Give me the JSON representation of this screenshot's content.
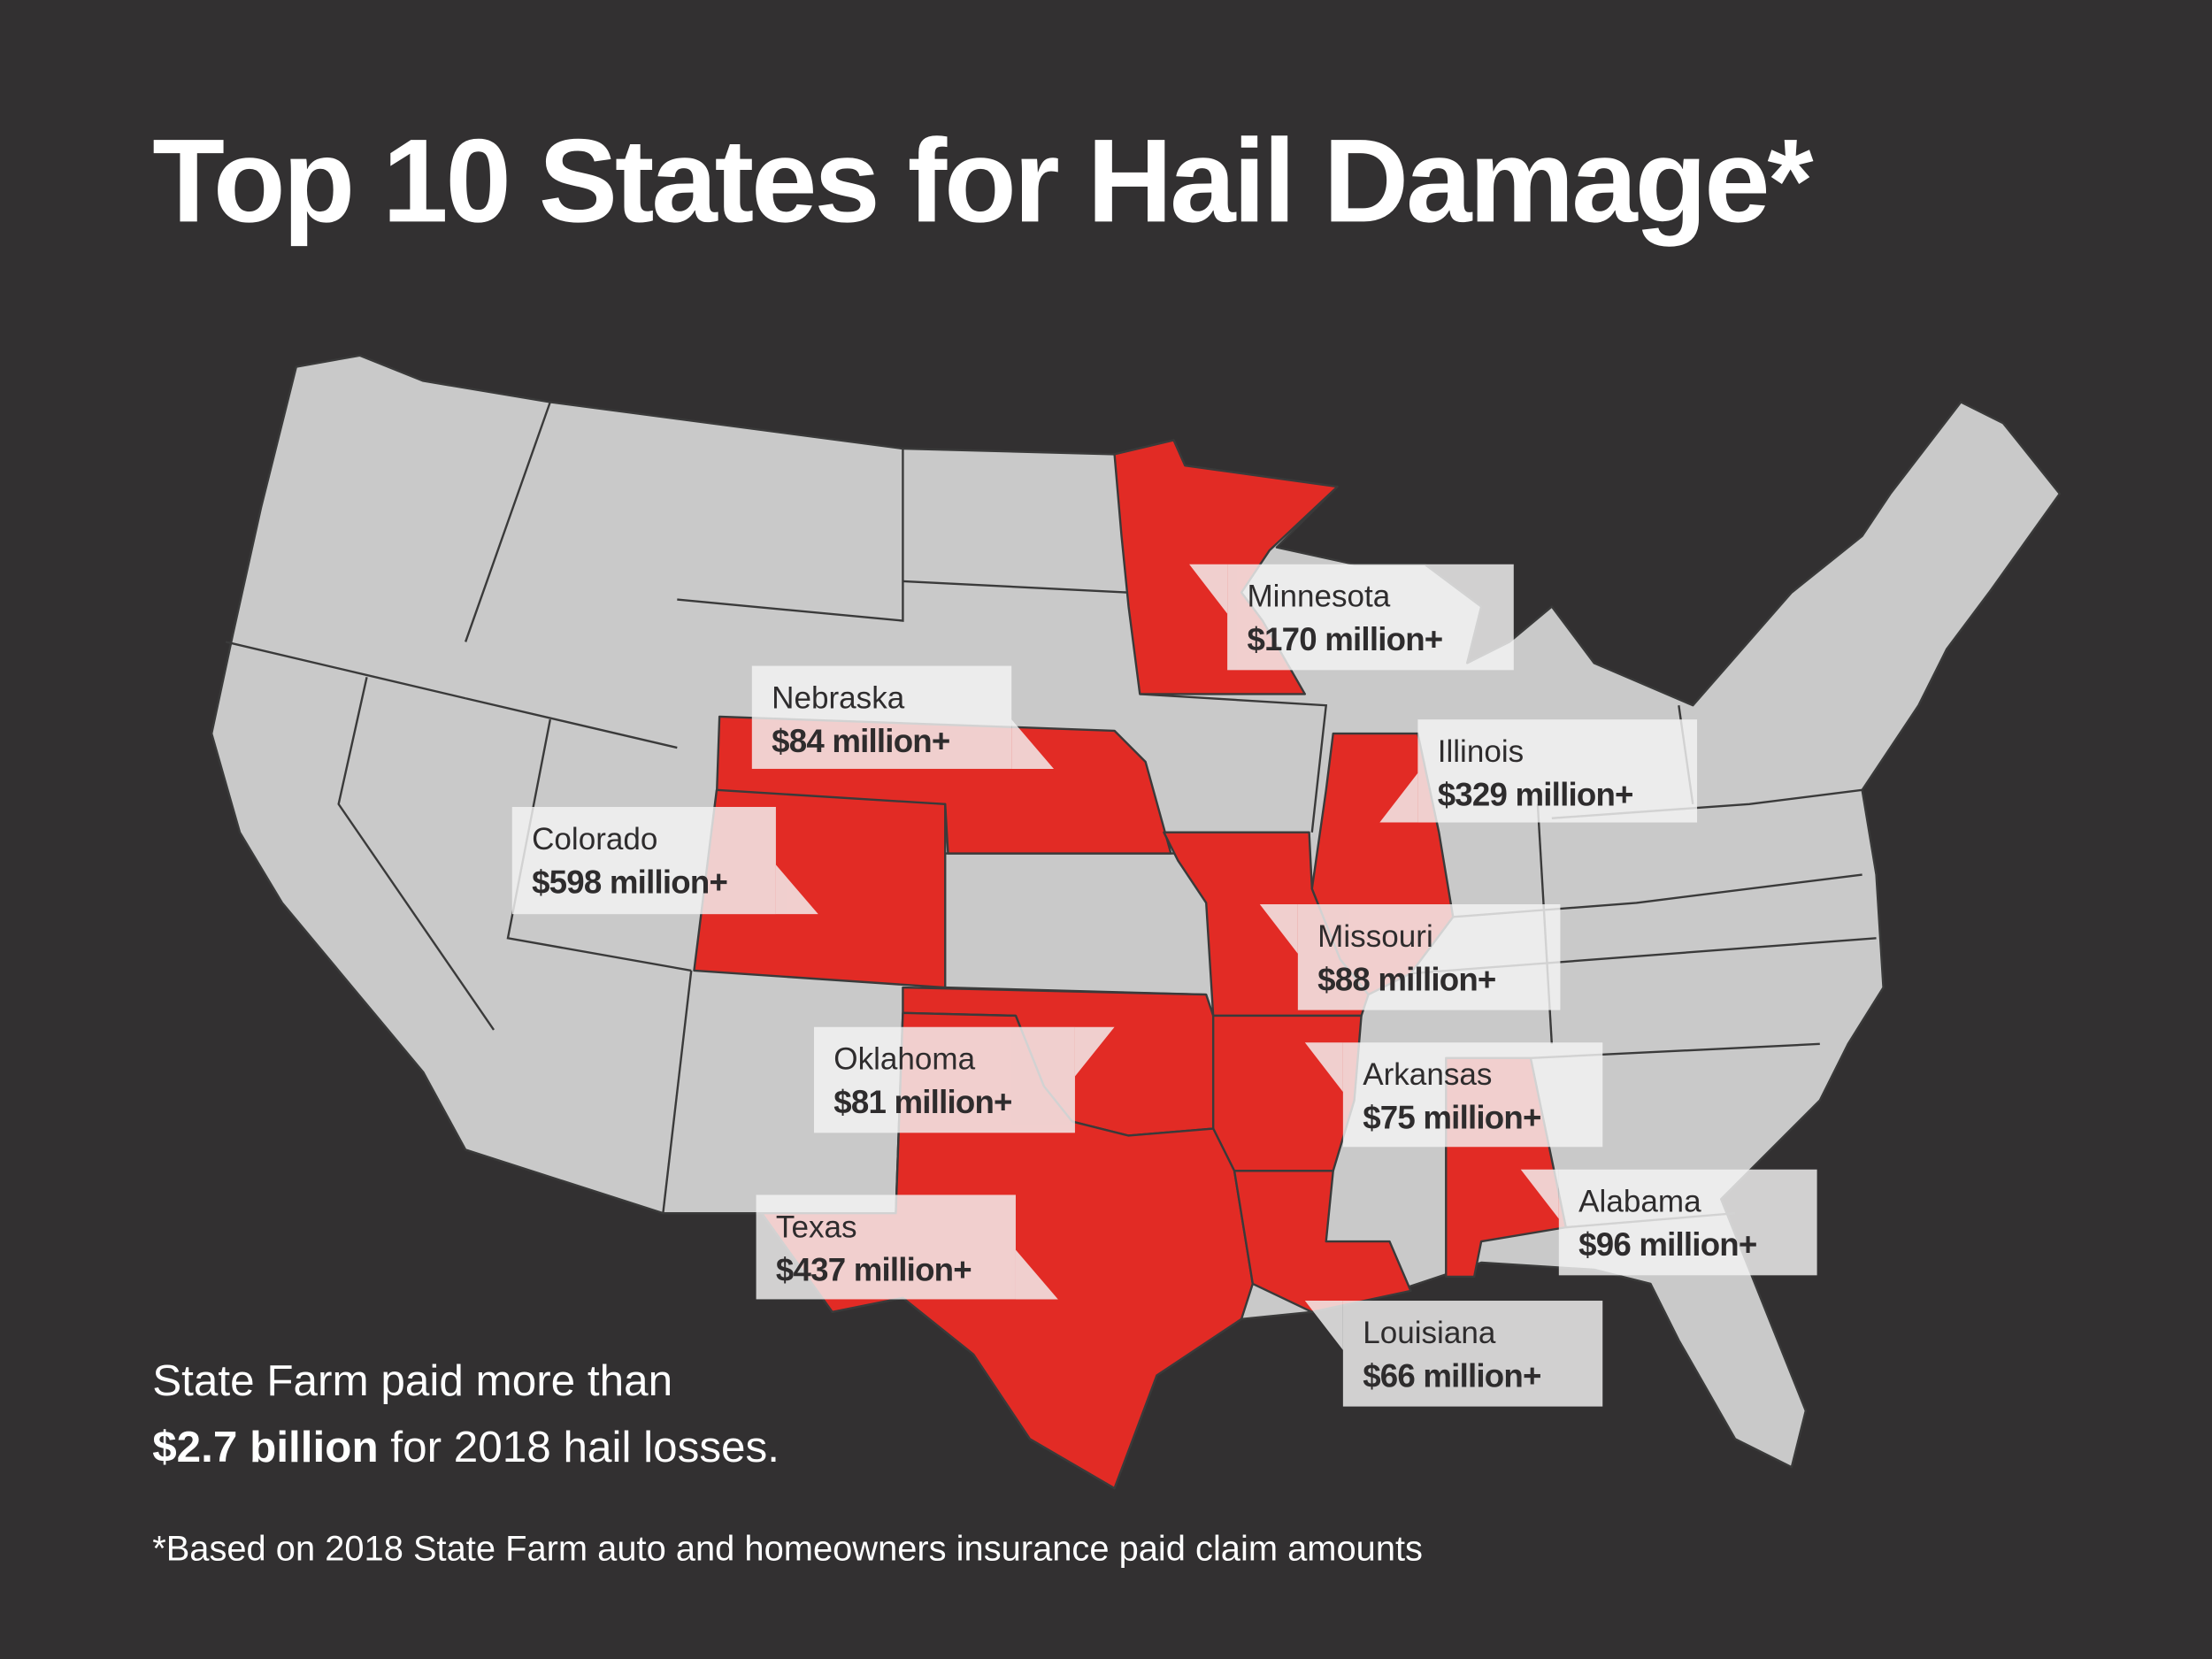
{
  "title": "Top 10 States for Hail Damage*",
  "colors": {
    "background": "#323031",
    "highlight": "#e22b25",
    "other_states": "#c9c9c9",
    "label_box": "#f4f4f4"
  },
  "states": [
    {
      "name": "Minnesota",
      "amount": "$170 million+"
    },
    {
      "name": "Nebraska",
      "amount": "$84 million+"
    },
    {
      "name": "Colorado",
      "amount": "$598 million+"
    },
    {
      "name": "Illinois",
      "amount": "$329 million+"
    },
    {
      "name": "Missouri",
      "amount": "$88 million+"
    },
    {
      "name": "Oklahoma",
      "amount": "$81 million+"
    },
    {
      "name": "Arkansas",
      "amount": "$75 million+"
    },
    {
      "name": "Alabama",
      "amount": "$96 million+"
    },
    {
      "name": "Texas",
      "amount": "$437 million+"
    },
    {
      "name": "Louisiana",
      "amount": "$66 million+"
    }
  ],
  "summary": {
    "line1": "State Farm paid more than",
    "bold": "$2.7 billion",
    "rest": " for 2018 hail losses."
  },
  "footnote": "*Based on 2018 State Farm auto and homeowners insurance paid claim amounts"
}
